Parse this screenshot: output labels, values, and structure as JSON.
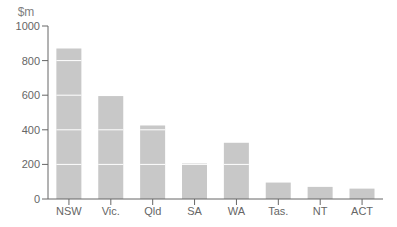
{
  "chart_data": {
    "type": "bar",
    "ylabel": "$m",
    "categories": [
      "NSW",
      "Vic.",
      "Qld",
      "SA",
      "WA",
      "Tas.",
      "NT",
      "ACT"
    ],
    "values": [
      870,
      595,
      425,
      205,
      325,
      95,
      70,
      60
    ],
    "color": "#c8c8c8",
    "ylim": [
      0,
      1000
    ],
    "yticks": [
      0,
      200,
      400,
      600,
      800,
      1000
    ],
    "grid": false
  }
}
